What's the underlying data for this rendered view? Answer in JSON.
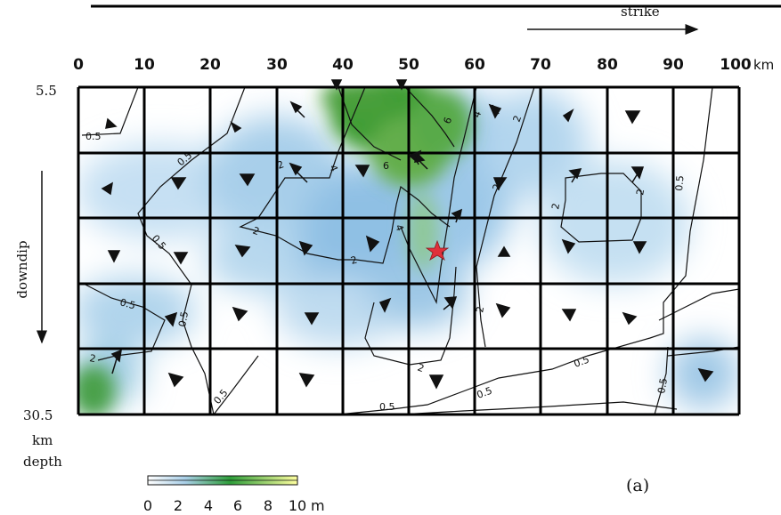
{
  "header_text": "strike",
  "x_ticks": [
    "0",
    "10",
    "20",
    "30",
    "40",
    "50",
    "60",
    "70",
    "80",
    "90",
    "100"
  ],
  "x_unit": "km",
  "y_top_label": "5.5",
  "y_bottom_label": "30.5",
  "y_unit_line1": "km",
  "y_unit_line2": "depth",
  "side_label": "downdip",
  "contour_labels": [
    "0.5",
    "0.5",
    "0.5",
    "0.5",
    "0.5",
    "0.5",
    "0.5",
    "0.5",
    "0.5",
    "0.5",
    "0.5",
    "2",
    "2",
    "2",
    "2",
    "2",
    "2",
    "2",
    "2",
    "2",
    "2",
    "4",
    "4",
    "4",
    "6",
    "6"
  ],
  "colorbar": {
    "ticks": [
      "0",
      "2",
      "4",
      "6",
      "8",
      "10"
    ],
    "unit": "m",
    "stops": [
      "#ffffff",
      "#a9cfe8",
      "#2e9e3a",
      "#ffffa0"
    ]
  },
  "panel_label": "(a)",
  "colors": {
    "grid": "#000000",
    "slip_low": "#ffffff",
    "slip_mid": "#9cc8e8",
    "slip_high": "#3a9a2a",
    "hypocenter": "#e0303a"
  },
  "icons": [
    "hypocenter-star-icon",
    "slip-direction-arrow-icon",
    "strike-arrow-icon",
    "downdip-arrow-icon"
  ]
}
